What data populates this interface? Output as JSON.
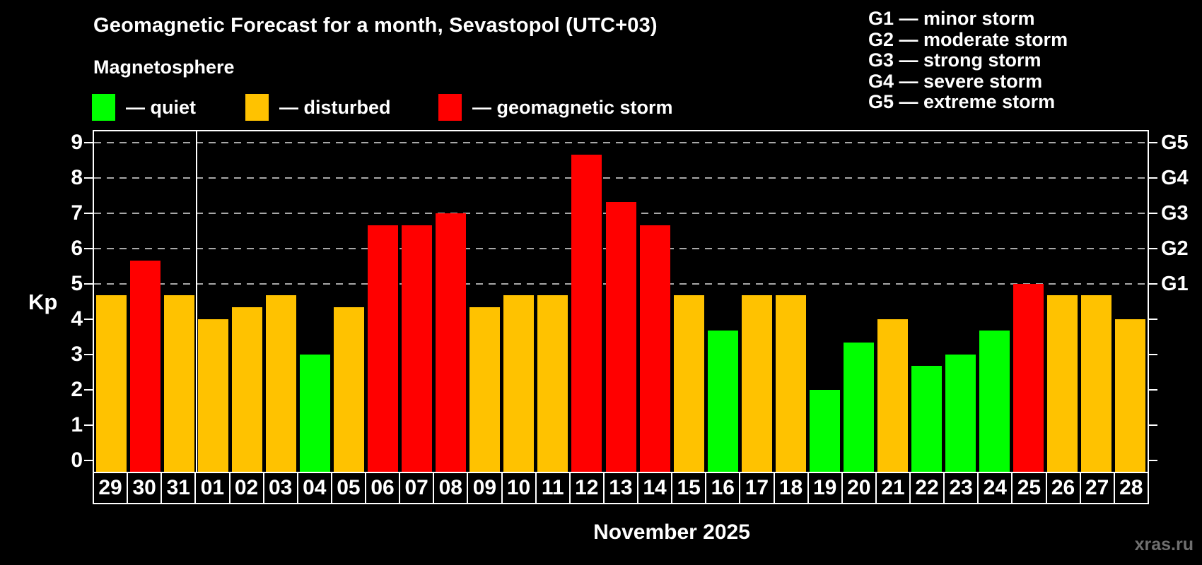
{
  "header": {
    "title": "Geomagnetic Forecast for a month, Sevastopol (UTC+03)",
    "subtitle": "Magnetosphere"
  },
  "legend": {
    "items": [
      {
        "status": "quiet",
        "label": "— quiet"
      },
      {
        "status": "disturbed",
        "label": "— disturbed"
      },
      {
        "status": "storm",
        "label": "— geomagnetic storm"
      }
    ]
  },
  "storm_scale_legend": [
    "G1 — minor storm",
    "G2 — moderate storm",
    "G3 — strong storm",
    "G4 — severe storm",
    "G5 — extreme storm"
  ],
  "colors": {
    "quiet": "#00ff00",
    "disturbed": "#ffc200",
    "storm": "#ff0000",
    "gridline": "#a8a8a8",
    "axis": "#ffffff",
    "watermark_text": "#6f6f6f"
  },
  "y_axis": {
    "label": "Kp",
    "ticks": [
      "0",
      "1",
      "2",
      "3",
      "4",
      "5",
      "6",
      "7",
      "8",
      "9"
    ]
  },
  "right_axis": {
    "labels": [
      {
        "kp": 5,
        "label": "G1"
      },
      {
        "kp": 6,
        "label": "G2"
      },
      {
        "kp": 7,
        "label": "G3"
      },
      {
        "kp": 8,
        "label": "G4"
      },
      {
        "kp": 9,
        "label": "G5"
      }
    ]
  },
  "x_axis": {
    "month_label": "November 2025"
  },
  "footer": {
    "watermark": "xras.ru"
  },
  "chart_data": {
    "type": "bar",
    "title": "Geomagnetic Forecast for a month, Sevastopol (UTC+03)",
    "ylabel": "Kp",
    "ylim": [
      0,
      9
    ],
    "gridlines_at": [
      5,
      6,
      7,
      8,
      9
    ],
    "grid": "dashed-horizontal",
    "month_separator_after_index": 2,
    "days": [
      {
        "day": "29",
        "kp": 4.67,
        "status": "disturbed"
      },
      {
        "day": "30",
        "kp": 5.67,
        "status": "storm"
      },
      {
        "day": "31",
        "kp": 4.67,
        "status": "disturbed"
      },
      {
        "day": "01",
        "kp": 4.0,
        "status": "disturbed"
      },
      {
        "day": "02",
        "kp": 4.33,
        "status": "disturbed"
      },
      {
        "day": "03",
        "kp": 4.67,
        "status": "disturbed"
      },
      {
        "day": "04",
        "kp": 3.0,
        "status": "quiet"
      },
      {
        "day": "05",
        "kp": 4.33,
        "status": "disturbed"
      },
      {
        "day": "06",
        "kp": 6.67,
        "status": "storm"
      },
      {
        "day": "07",
        "kp": 6.67,
        "status": "storm"
      },
      {
        "day": "08",
        "kp": 7.0,
        "status": "storm"
      },
      {
        "day": "09",
        "kp": 4.33,
        "status": "disturbed"
      },
      {
        "day": "10",
        "kp": 4.67,
        "status": "disturbed"
      },
      {
        "day": "11",
        "kp": 4.67,
        "status": "disturbed"
      },
      {
        "day": "12",
        "kp": 8.67,
        "status": "storm"
      },
      {
        "day": "13",
        "kp": 7.33,
        "status": "storm"
      },
      {
        "day": "14",
        "kp": 6.67,
        "status": "storm"
      },
      {
        "day": "15",
        "kp": 4.67,
        "status": "disturbed"
      },
      {
        "day": "16",
        "kp": 3.67,
        "status": "quiet"
      },
      {
        "day": "17",
        "kp": 4.67,
        "status": "disturbed"
      },
      {
        "day": "18",
        "kp": 4.67,
        "status": "disturbed"
      },
      {
        "day": "19",
        "kp": 2.0,
        "status": "quiet"
      },
      {
        "day": "20",
        "kp": 3.33,
        "status": "quiet"
      },
      {
        "day": "21",
        "kp": 4.0,
        "status": "disturbed"
      },
      {
        "day": "22",
        "kp": 2.67,
        "status": "quiet"
      },
      {
        "day": "23",
        "kp": 3.0,
        "status": "quiet"
      },
      {
        "day": "24",
        "kp": 3.67,
        "status": "quiet"
      },
      {
        "day": "25",
        "kp": 5.0,
        "status": "storm"
      },
      {
        "day": "26",
        "kp": 4.67,
        "status": "disturbed"
      },
      {
        "day": "27",
        "kp": 4.67,
        "status": "disturbed"
      },
      {
        "day": "28",
        "kp": 4.0,
        "status": "disturbed"
      }
    ]
  }
}
